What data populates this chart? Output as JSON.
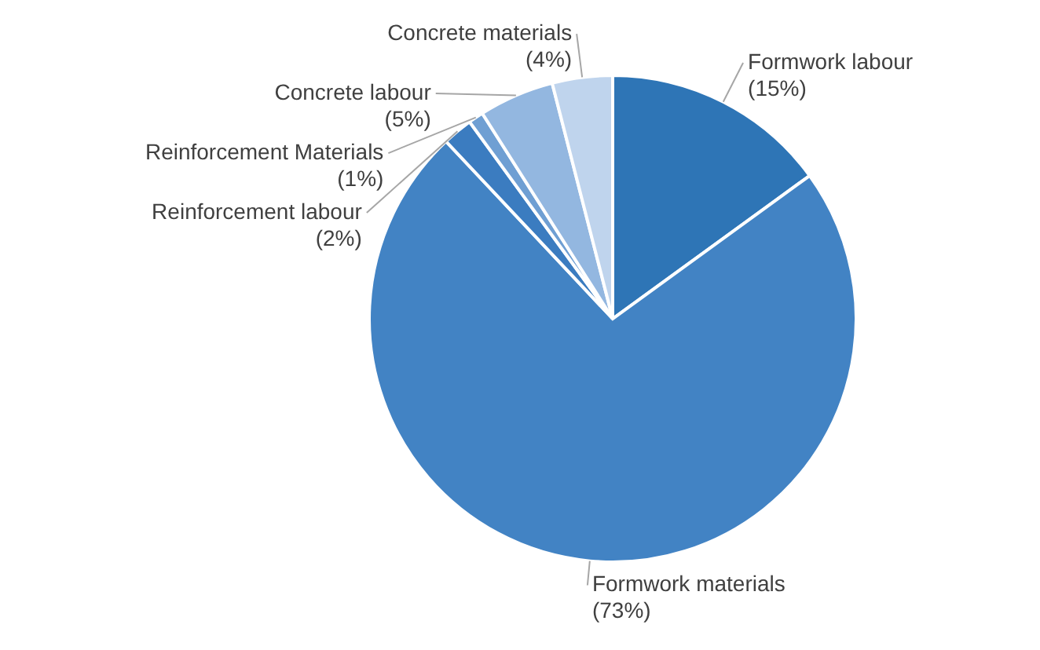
{
  "chart_data": {
    "type": "pie",
    "categories": [
      "Formwork labour",
      "Formwork materials",
      "Reinforcement labour",
      "Reinforcement Materials",
      "Concrete labour",
      "Concrete materials"
    ],
    "values": [
      15,
      73,
      2,
      1,
      5,
      4
    ],
    "colors": [
      "#2e75b6",
      "#4283c4",
      "#3b7cc0",
      "#6f9fd3",
      "#93b7e0",
      "#bfd4ed"
    ],
    "value_labels": [
      "(15%)",
      "(73%)",
      "(2%)",
      "(1%)",
      "(5%)",
      "(4%)"
    ],
    "legend": false
  }
}
